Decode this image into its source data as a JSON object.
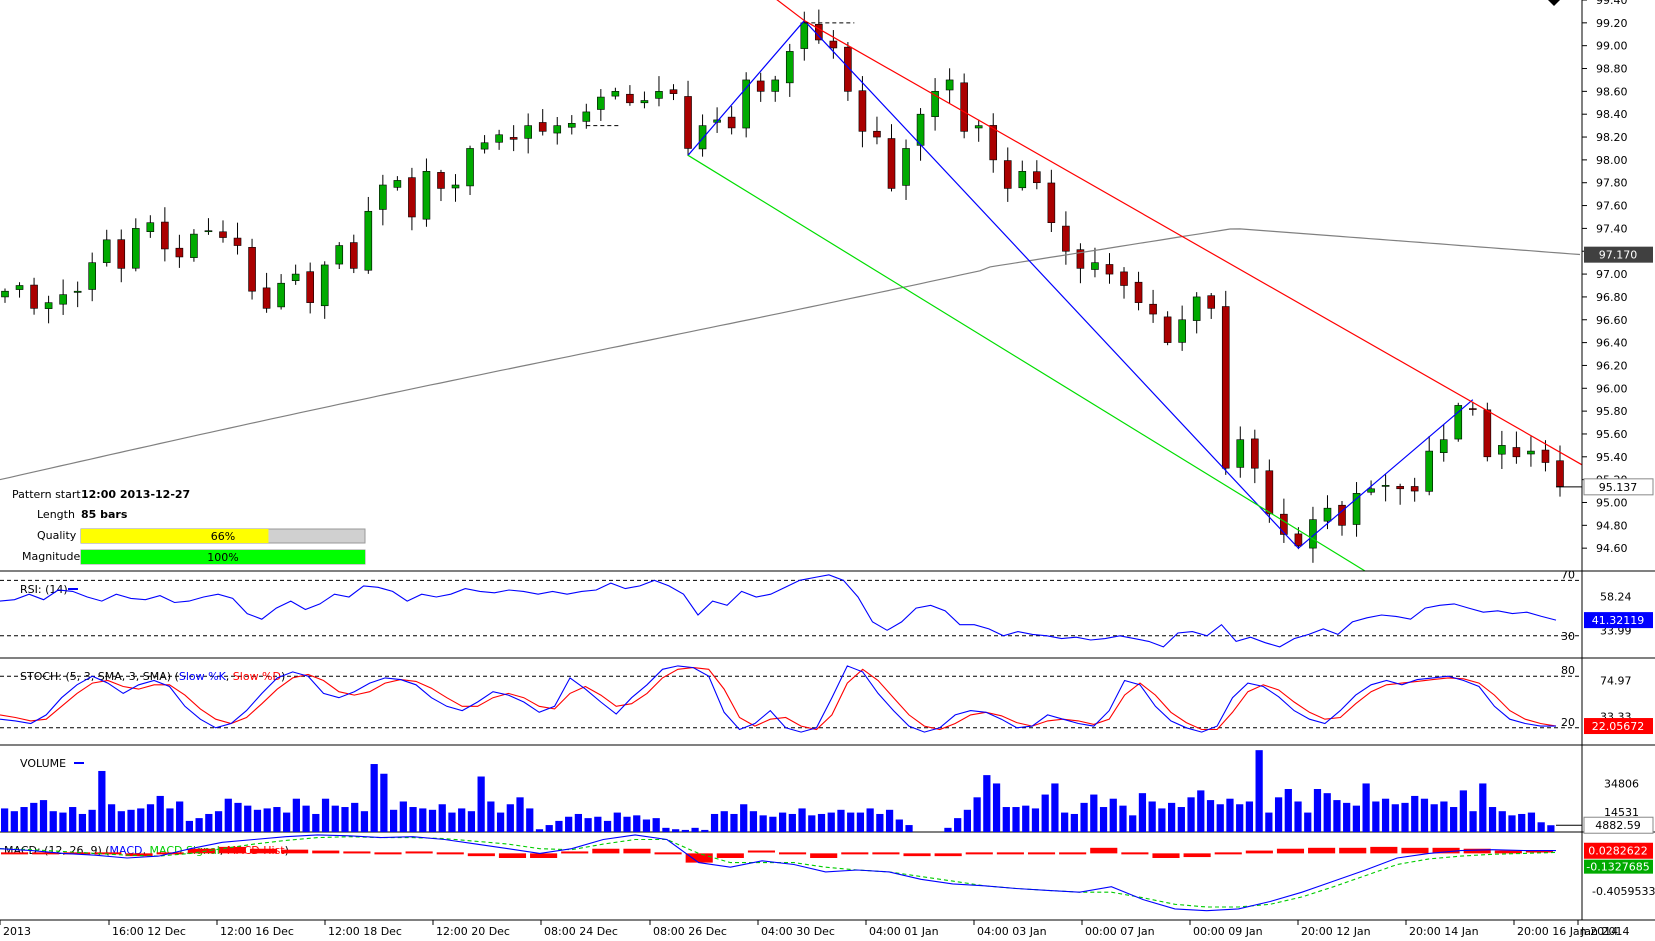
{
  "chart_data": [
    {
      "type": "candlestick",
      "panel": "price",
      "y_axis_ticks": [
        94.6,
        94.8,
        95.0,
        95.2,
        95.4,
        95.6,
        95.8,
        96.0,
        96.2,
        96.4,
        96.6,
        96.8,
        97.0,
        97.2,
        97.4,
        97.6,
        97.8,
        98.0,
        98.2,
        98.4,
        98.6,
        98.8,
        99.0,
        99.2,
        99.4
      ],
      "y_axis_tick_labels": [
        "94.60",
        "94.80",
        "95.00",
        "95.20",
        "95.40",
        "95.60",
        "95.80",
        "96.00",
        "96.20",
        "96.40",
        "96.60",
        "96.80",
        "97.00",
        "97.20",
        "97.40",
        "97.60",
        "97.80",
        "98.00",
        "98.20",
        "98.40",
        "98.60",
        "98.80",
        "99.00",
        "99.20",
        "99.40"
      ],
      "ylim": [
        94.4,
        99.4
      ],
      "x_tick_labels": [
        "2013",
        "16:00 12 Dec",
        "12:00 16 Dec",
        "12:00 18 Dec",
        "12:00 20 Dec",
        "08:00 24 Dec",
        "08:00 26 Dec",
        "04:00 30 Dec",
        "04:00 01 Jan",
        "04:00 03 Jan",
        "00:00 07 Jan",
        "00:00 09 Jan",
        "20:00 12 Jan",
        "20:00 14 Jan",
        "20:00 16 Jan 2014",
        "Jan 2014"
      ],
      "moving_average": {
        "last_value": 97.17,
        "label": "97.170",
        "color": "#808080"
      },
      "last_price": {
        "value": 95.137,
        "label": "95.137"
      },
      "pattern_lines": [
        {
          "color": "#0000ff",
          "points": [
            [
              "12:00 2013-12-27",
              98.04
            ],
            [
              "2013-12-31",
              99.22
            ],
            [
              "20:00 12 Jan",
              94.6
            ],
            [
              "14 Jan",
              95.9
            ]
          ]
        },
        {
          "color": "#ff0000",
          "points": [
            [
              "2013-12-31",
              99.22
            ],
            [
              "16 Jan",
              95.33
            ]
          ]
        },
        {
          "color": "#00dd00",
          "points": [
            [
              "12:00 2013-12-27",
              98.04
            ],
            [
              "13 Jan",
              94.4
            ]
          ]
        }
      ],
      "ohlc_close_path": [
        96.85,
        96.9,
        96.7,
        96.75,
        96.82,
        96.85,
        97.1,
        97.3,
        97.05,
        97.4,
        97.45,
        97.22,
        97.15,
        97.35,
        97.38,
        97.32,
        97.25,
        96.85,
        96.7,
        96.92,
        97.0,
        96.75,
        97.08,
        97.25,
        97.05,
        97.55,
        97.78,
        97.82,
        97.5,
        97.9,
        97.75,
        97.78,
        98.1,
        98.15,
        98.22,
        98.18,
        98.3,
        98.25,
        98.3,
        98.32,
        98.42,
        98.55,
        98.6,
        98.5,
        98.52,
        98.6,
        98.58,
        98.1,
        98.3,
        98.35,
        98.28,
        98.7,
        98.6,
        98.7,
        98.95,
        99.2,
        99.05,
        98.98,
        98.6,
        98.25,
        98.2,
        97.75,
        98.1,
        98.4,
        98.6,
        98.7,
        98.25,
        98.3,
        98.0,
        97.75,
        97.9,
        97.8,
        97.45,
        97.2,
        97.05,
        97.1,
        97.0,
        96.9,
        96.75,
        96.65,
        96.4,
        96.6,
        96.8,
        96.7,
        95.3,
        95.55,
        95.3,
        94.9,
        94.72,
        94.62,
        94.85,
        94.95,
        94.8,
        95.08,
        95.12,
        95.15,
        95.12,
        95.1,
        95.45,
        95.55,
        95.85,
        95.82,
        95.4,
        95.5,
        95.4,
        95.45,
        95.35,
        95.14
      ]
    },
    {
      "type": "line",
      "panel": "rsi",
      "title": "RSI: (14)",
      "levels": [
        70,
        30
      ],
      "level_labels": [
        "70",
        "30"
      ],
      "tick_labels": [
        "58.24",
        "33.99"
      ],
      "last_value": {
        "value": 41.32119,
        "label": "41.32119"
      },
      "series": [
        {
          "name": "RSI",
          "color": "#0000ff",
          "values": [
            55,
            56,
            60,
            56,
            63,
            62,
            58,
            55,
            60,
            57,
            56,
            59,
            54,
            55,
            58,
            60,
            57,
            46,
            42,
            50,
            55,
            49,
            53,
            60,
            58,
            66,
            65,
            62,
            55,
            60,
            58,
            60,
            64,
            62,
            61,
            63,
            62,
            60,
            62,
            60,
            62,
            63,
            68,
            64,
            66,
            70,
            66,
            60,
            45,
            55,
            52,
            62,
            58,
            60,
            65,
            70,
            72,
            74,
            70,
            58,
            40,
            34,
            40,
            50,
            52,
            48,
            38,
            38,
            35,
            30,
            33,
            31,
            30,
            28,
            29,
            27,
            28,
            30,
            28,
            26,
            22,
            32,
            33,
            30,
            38,
            26,
            29,
            25,
            22,
            28,
            31,
            35,
            31,
            40,
            43,
            45,
            44,
            42,
            50,
            52,
            53,
            50,
            47,
            48,
            46,
            47,
            44,
            41.32
          ]
        }
      ]
    },
    {
      "type": "line",
      "panel": "stochastic",
      "title": "STOCH: (5, 3, SMA, 3, SMA)",
      "legend": [
        "Slow %K",
        "Slow %D"
      ],
      "levels": [
        80,
        20
      ],
      "level_labels": [
        "80",
        "20"
      ],
      "tick_labels": [
        "74.97",
        "33.33"
      ],
      "last_value": {
        "value": 22.05672,
        "label": "22.05672"
      },
      "series": [
        {
          "name": "Slow %K",
          "color": "#0000ff",
          "values": [
            30,
            28,
            25,
            35,
            55,
            70,
            80,
            72,
            60,
            70,
            75,
            68,
            45,
            30,
            20,
            25,
            40,
            60,
            78,
            85,
            80,
            60,
            55,
            62,
            72,
            78,
            76,
            70,
            55,
            45,
            40,
            50,
            62,
            58,
            50,
            38,
            45,
            78,
            65,
            50,
            36,
            55,
            70,
            88,
            92,
            90,
            80,
            38,
            18,
            25,
            40,
            20,
            15,
            20,
            55,
            92,
            85,
            60,
            40,
            22,
            15,
            20,
            35,
            40,
            38,
            30,
            20,
            22,
            35,
            30,
            25,
            22,
            40,
            75,
            70,
            45,
            28,
            20,
            15,
            22,
            55,
            72,
            68,
            56,
            40,
            30,
            25,
            40,
            58,
            70,
            75,
            70,
            76,
            78,
            80,
            75,
            68,
            45,
            30,
            25,
            22,
            22
          ]
        },
        {
          "name": "Slow %D",
          "color": "#ff0000",
          "values": [
            35,
            32,
            28,
            30,
            45,
            60,
            72,
            75,
            68,
            65,
            70,
            70,
            58,
            42,
            30,
            25,
            32,
            48,
            65,
            78,
            82,
            75,
            62,
            58,
            62,
            72,
            76,
            74,
            66,
            55,
            45,
            45,
            55,
            60,
            55,
            45,
            42,
            60,
            68,
            58,
            45,
            48,
            60,
            78,
            88,
            90,
            88,
            65,
            32,
            22,
            30,
            32,
            22,
            18,
            35,
            72,
            88,
            75,
            55,
            35,
            22,
            18,
            25,
            35,
            38,
            34,
            26,
            22,
            28,
            30,
            28,
            24,
            30,
            58,
            72,
            58,
            38,
            26,
            18,
            18,
            38,
            62,
            70,
            64,
            50,
            38,
            30,
            32,
            48,
            62,
            70,
            72,
            74,
            76,
            78,
            77,
            72,
            58,
            40,
            30,
            25,
            22
          ]
        }
      ]
    },
    {
      "type": "bar",
      "panel": "volume",
      "title": "VOLUME",
      "tick_labels": [
        "34806",
        "14531"
      ],
      "last_value": {
        "value": 4882.59,
        "label": "4882.59"
      },
      "values": [
        17000,
        15000,
        18000,
        21000,
        23000,
        15000,
        14000,
        18000,
        13000,
        16000,
        44000,
        20000,
        15000,
        16000,
        17000,
        20000,
        26000,
        17000,
        22000,
        8000,
        10000,
        13000,
        15000,
        24000,
        21000,
        19000,
        16000,
        17000,
        18000,
        14000,
        24000,
        19000,
        13000,
        24000,
        19000,
        18000,
        21000,
        15000,
        49000,
        42000,
        16000,
        22000,
        18000,
        17000,
        16000,
        20000,
        14000,
        17000,
        15000,
        40000,
        22000,
        14000,
        20000,
        25000,
        17000,
        2000,
        5000,
        8000,
        11000,
        13000,
        10000,
        11000,
        8000,
        14000,
        11000,
        12000,
        9000,
        10000,
        3000,
        2000,
        1500,
        3000,
        1500,
        13000,
        15000,
        13000,
        20000,
        15000,
        12000,
        11000,
        14000,
        13000,
        17000,
        12000,
        13000,
        14000,
        16000,
        14000,
        14000,
        17000,
        13000,
        16000,
        9000,
        5000,
        0,
        0,
        0,
        3000,
        10000,
        16000,
        25000,
        41000,
        35000,
        18000,
        18000,
        19000,
        17000,
        27000,
        35000,
        14000,
        13000,
        21000,
        27000,
        18000,
        24000,
        19000,
        12000,
        28000,
        22000,
        17000,
        21000,
        18000,
        25000,
        30000,
        23000,
        20000,
        24000,
        20000,
        22000,
        59000,
        14000,
        25000,
        31000,
        22000,
        14000,
        31000,
        28000,
        23000,
        21000,
        19000,
        35000,
        22000,
        24000,
        20000,
        21000,
        26000,
        24000,
        20000,
        22000,
        18000,
        30000,
        15000,
        35000,
        18000,
        15000,
        12000,
        13000,
        14000,
        7000,
        4882.59
      ]
    },
    {
      "type": "line",
      "panel": "macd",
      "title": "MACD: (12, 26, 9)",
      "legend": [
        "MACD",
        "MACD Signal",
        "MACD Hist"
      ],
      "tick_labels": [
        "0.0282622",
        "-0.1327685",
        "-0.4059533"
      ],
      "series": [
        {
          "name": "MACD",
          "color": "#0000ff",
          "values": [
            0.05,
            0.03,
            0.0,
            -0.02,
            -0.05,
            -0.03,
            0.05,
            0.12,
            0.15,
            0.18,
            0.2,
            0.19,
            0.17,
            0.18,
            0.15,
            0.1,
            0.05,
            0.0,
            0.05,
            0.15,
            0.2,
            0.15,
            -0.1,
            -0.15,
            -0.08,
            -0.12,
            -0.2,
            -0.18,
            -0.2,
            -0.28,
            -0.33,
            -0.35,
            -0.38,
            -0.4,
            -0.42,
            -0.36,
            -0.5,
            -0.6,
            -0.62,
            -0.6,
            -0.52,
            -0.42,
            -0.3,
            -0.18,
            -0.05,
            0.0,
            0.03,
            0.04,
            0.03,
            0.03
          ]
        },
        {
          "name": "MACD Signal",
          "color": "#00cc00",
          "values": [
            0.05,
            0.04,
            0.02,
            0.0,
            -0.02,
            -0.03,
            0.0,
            0.05,
            0.1,
            0.14,
            0.17,
            0.18,
            0.17,
            0.17,
            0.16,
            0.13,
            0.1,
            0.05,
            0.04,
            0.1,
            0.15,
            0.15,
            0.0,
            -0.1,
            -0.1,
            -0.1,
            -0.15,
            -0.18,
            -0.2,
            -0.25,
            -0.3,
            -0.35,
            -0.38,
            -0.4,
            -0.42,
            -0.42,
            -0.48,
            -0.55,
            -0.58,
            -0.58,
            -0.55,
            -0.47,
            -0.36,
            -0.24,
            -0.12,
            -0.06,
            -0.03,
            -0.01,
            0.0,
            0.01
          ]
        },
        {
          "name": "MACD Hist",
          "color": "#ff0000",
          "values": [
            0.0,
            -0.01,
            -0.02,
            -0.02,
            -0.03,
            0.0,
            0.05,
            0.07,
            0.05,
            0.04,
            0.03,
            0.01,
            0.0,
            0.01,
            -0.01,
            -0.03,
            -0.05,
            -0.05,
            0.01,
            0.05,
            0.05,
            0.0,
            -0.1,
            -0.05,
            0.02,
            -0.02,
            -0.05,
            0.0,
            0.0,
            -0.03,
            -0.03,
            0.0,
            0.0,
            0.0,
            0.0,
            0.06,
            -0.02,
            -0.05,
            -0.04,
            -0.02,
            0.03,
            0.05,
            0.06,
            0.06,
            0.07,
            0.06,
            0.06,
            0.05,
            0.03,
            0.02
          ]
        }
      ]
    }
  ],
  "info": {
    "pattern_start_label": "Pattern start",
    "pattern_start_value": "12:00 2013-12-27",
    "length_label": "Length",
    "length_value": "85 bars",
    "quality_label": "Quality",
    "quality_pct": 66,
    "quality_text": "66%",
    "magnitude_label": "Magnitude",
    "magnitude_pct": 100,
    "magnitude_text": "100%",
    "quality_color": "#ffff00",
    "magnitude_color": "#00ff00"
  },
  "colors": {
    "up_candle": "#00aa00",
    "down_candle": "#aa0000",
    "axis_label_bg": "#404040",
    "rsi_last_bg": "#0000ff",
    "stoch_last_bg": "#ff0000",
    "macd_last_bg_pos": "#ff0000",
    "macd_last_bg_neg": "#00aa00"
  }
}
